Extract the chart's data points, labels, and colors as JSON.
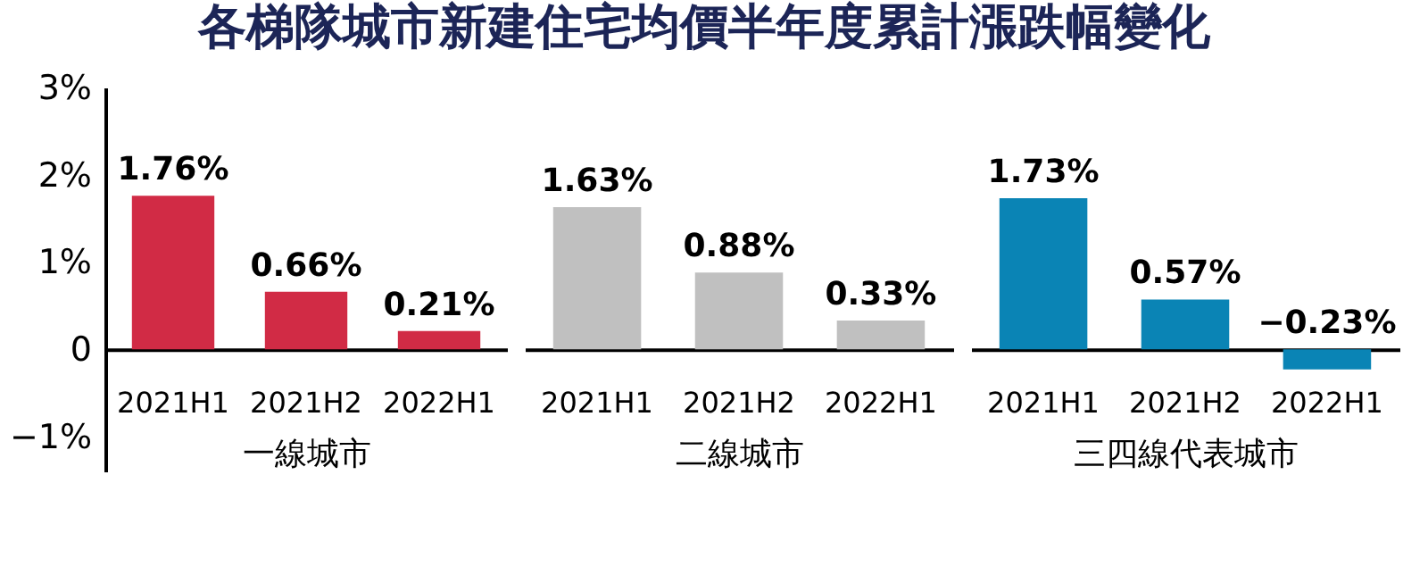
{
  "chart_data": [
    {
      "type": "bar",
      "title": "各梯隊城市新建住宅均價半年度累計漲跌幅變化",
      "xlabel": "一線城市",
      "categories": [
        "2021H1",
        "2021H2",
        "2022H1"
      ],
      "values": [
        1.76,
        0.66,
        0.21
      ],
      "value_labels": [
        "1.76%",
        "0.66%",
        "0.21%"
      ],
      "color": "#d12b45",
      "ylim": [
        -1.4,
        3
      ],
      "yticks": [
        {
          "value": 3,
          "label": "3%"
        },
        {
          "value": 2,
          "label": "2%"
        },
        {
          "value": 1,
          "label": "1%"
        },
        0,
        {
          "value": -1,
          "label": "−1%"
        }
      ]
    },
    {
      "type": "bar",
      "xlabel": "二線城市",
      "categories": [
        "2021H1",
        "2021H2",
        "2022H1"
      ],
      "values": [
        1.63,
        0.88,
        0.33
      ],
      "value_labels": [
        "1.63%",
        "0.88%",
        "0.33%"
      ],
      "color": "#c0c0c0",
      "ylim": [
        -1.4,
        3
      ],
      "tick_labels": "x"
    },
    {
      "type": "bar",
      "xlabel": "三四線代表城市",
      "categories": [
        "2021H1",
        "2021H2",
        "2022H1"
      ],
      "values": [
        1.73,
        0.57,
        -0.23
      ],
      "value_labels": [
        "1.73%",
        "0.57%",
        "−0.23%"
      ],
      "color": "#0a84b5",
      "ylim": [
        -1.4,
        3
      ],
      "tick_labels": "x"
    }
  ]
}
